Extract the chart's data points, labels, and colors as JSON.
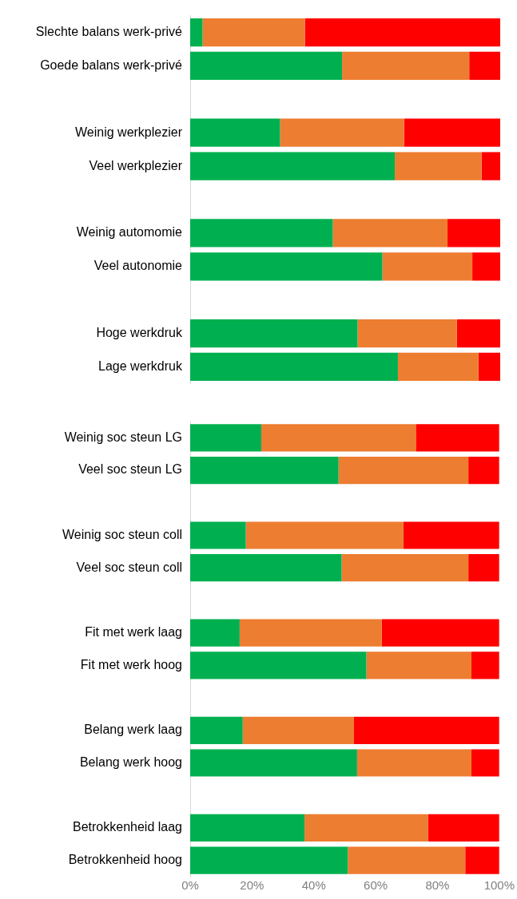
{
  "chart_data": [
    {
      "type": "bar",
      "orientation": "horizontal",
      "stacked": true,
      "tick_labels": "y",
      "categories": [
        "Slechte balans werk-privé",
        "Goede balans werk-privé",
        null,
        "Weinig werkplezier",
        "Veel werkplezier",
        null,
        "Weinig automomie",
        "Veel autonomie",
        null,
        "Hoge werkdruk",
        "Lage werkdruk"
      ],
      "series": [
        {
          "color": "#00b050",
          "values": [
            4,
            49,
            null,
            29,
            66,
            null,
            46,
            62,
            null,
            54,
            67
          ]
        },
        {
          "color": "#ed7d31",
          "values": [
            33,
            41,
            null,
            40,
            28,
            null,
            37,
            29,
            null,
            32,
            26
          ]
        },
        {
          "color": "#ff0000",
          "values": [
            63,
            10,
            null,
            31,
            6,
            null,
            17,
            9,
            null,
            14,
            7
          ]
        }
      ],
      "xlim": [
        0,
        100
      ]
    },
    {
      "type": "bar",
      "orientation": "horizontal",
      "stacked": true,
      "categories": [
        "Weinig soc steun LG",
        "Veel soc steun LG",
        null,
        "Weinig soc steun coll",
        "Veel soc steun coll",
        null,
        "Fit met werk laag",
        "Fit met werk hoog",
        null,
        "Belang werk laag",
        "Belang werk hoog",
        null,
        "Betrokkenheid laag",
        "Betrokkenheid hoog"
      ],
      "series": [
        {
          "color": "#00b050",
          "values": [
            23,
            48,
            null,
            18,
            49,
            null,
            16,
            57,
            null,
            17,
            54,
            null,
            37,
            51
          ]
        },
        {
          "color": "#ed7d31",
          "values": [
            50,
            42,
            null,
            51,
            41,
            null,
            46,
            34,
            null,
            36,
            37,
            null,
            40,
            38
          ]
        },
        {
          "color": "#ff0000",
          "values": [
            27,
            10,
            null,
            31,
            10,
            null,
            38,
            9,
            null,
            47,
            9,
            null,
            23,
            11
          ]
        }
      ],
      "xlim": [
        0,
        100
      ],
      "xticks": [
        {
          "value": 0,
          "label": "0%"
        },
        {
          "value": 20,
          "label": "20%"
        },
        {
          "value": 40,
          "label": "40%"
        },
        {
          "value": 60,
          "label": "60%"
        },
        {
          "value": 80,
          "label": "80%"
        },
        {
          "value": 100,
          "label": "100%"
        }
      ]
    }
  ]
}
